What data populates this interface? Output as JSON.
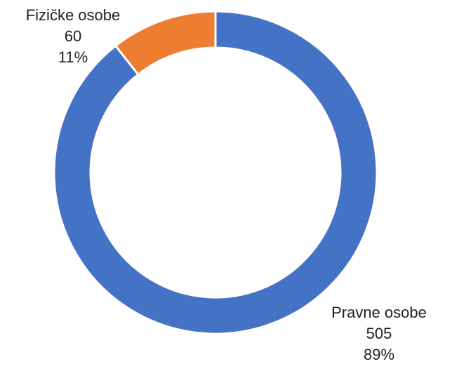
{
  "chart_data": {
    "type": "pie",
    "title": "",
    "categories": [
      "Pravne osobe",
      "Fizičke osobe"
    ],
    "values": [
      505,
      60
    ],
    "percent_labels": [
      "89%",
      "11%"
    ],
    "colors": [
      "#4472C4",
      "#ED7D31"
    ],
    "legend": "none",
    "data_labels": [
      {
        "category": "Pravne osobe",
        "value": "505",
        "percent": "89%"
      },
      {
        "category": "Fizičke osobe",
        "value": "60",
        "percent": "11%"
      }
    ]
  }
}
